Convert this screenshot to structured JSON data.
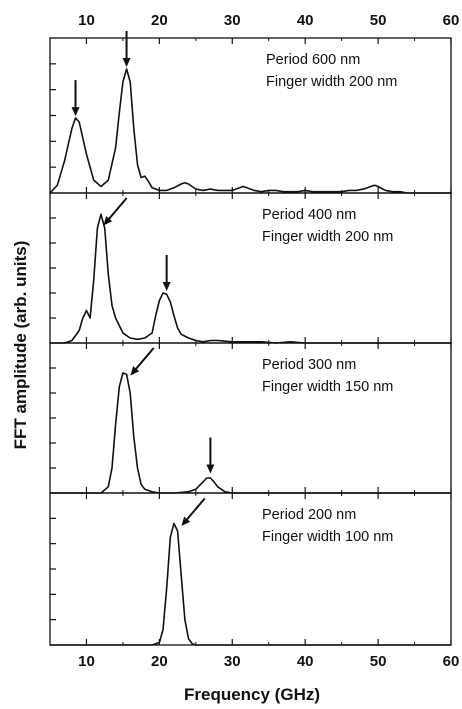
{
  "chart_data": {
    "type": "line",
    "xlabel": "Frequency (GHz)",
    "ylabel": "FFT amplitude (arb. units)",
    "xlim": [
      5,
      60
    ],
    "x_ticks": [
      "10",
      "20",
      "30",
      "40",
      "50",
      "60"
    ],
    "x_tick_values": [
      10,
      20,
      30,
      40,
      50,
      60
    ],
    "grid": false,
    "legend": "none",
    "line_color": "#111111",
    "panels": [
      {
        "annotation_lines": [
          "Period 600 nm",
          "Finger width 200 nm"
        ],
        "ylim": [
          0,
          1.2
        ],
        "y_ticks": [
          0.2,
          0.4,
          0.6,
          0.8,
          1.0
        ],
        "x": [
          5,
          6,
          7,
          8,
          8.5,
          9,
          10,
          11,
          12,
          13,
          14,
          14.5,
          15,
          15.5,
          16,
          16.5,
          17,
          17.5,
          18,
          18.5,
          19,
          20,
          21,
          22,
          23,
          23.5,
          24,
          25,
          26,
          27,
          28,
          29,
          30,
          31,
          31.5,
          32,
          33,
          34,
          35,
          36,
          37,
          38,
          39,
          40,
          41,
          42,
          43,
          44,
          45,
          46,
          47,
          48,
          49,
          49.5,
          50,
          51,
          52,
          53,
          54,
          55,
          56,
          57,
          58,
          59,
          60
        ],
        "y": [
          0.0,
          0.06,
          0.25,
          0.5,
          0.58,
          0.55,
          0.3,
          0.1,
          0.05,
          0.1,
          0.35,
          0.62,
          0.86,
          0.96,
          0.86,
          0.5,
          0.22,
          0.12,
          0.13,
          0.09,
          0.04,
          0.02,
          0.02,
          0.04,
          0.07,
          0.08,
          0.07,
          0.03,
          0.02,
          0.03,
          0.02,
          0.02,
          0.02,
          0.04,
          0.05,
          0.04,
          0.02,
          0.01,
          0.02,
          0.02,
          0.01,
          0.01,
          0.01,
          0.02,
          0.01,
          0.01,
          0.01,
          0.01,
          0.01,
          0.02,
          0.02,
          0.03,
          0.05,
          0.06,
          0.05,
          0.02,
          0.01,
          0.01,
          0.0,
          0.0,
          0.0,
          0.0,
          0.0,
          0.0,
          0.0
        ],
        "arrows": [
          {
            "x": 8.5,
            "y": 0.58,
            "direction": "down"
          },
          {
            "x": 15.5,
            "y": 0.96,
            "direction": "down"
          }
        ]
      },
      {
        "annotation_lines": [
          "Period 400 nm",
          "Finger width 200 nm"
        ],
        "ylim": [
          0,
          1.2
        ],
        "y_ticks": [
          0.2,
          0.4,
          0.6,
          0.8,
          1.0
        ],
        "x": [
          5,
          7,
          8,
          9,
          9.5,
          10,
          10.5,
          11,
          11.5,
          12,
          12.5,
          13,
          13.5,
          14,
          15,
          16,
          17,
          18,
          19,
          19.5,
          20,
          20.5,
          21,
          21.5,
          22,
          22.5,
          23,
          24,
          25,
          26,
          27,
          28,
          30,
          32,
          34,
          36,
          38,
          40,
          42,
          44,
          46,
          48,
          50,
          52,
          54,
          56,
          58,
          60
        ],
        "y": [
          0.0,
          0.0,
          0.02,
          0.1,
          0.2,
          0.26,
          0.2,
          0.5,
          0.92,
          1.03,
          0.92,
          0.55,
          0.3,
          0.2,
          0.08,
          0.04,
          0.03,
          0.04,
          0.08,
          0.22,
          0.34,
          0.4,
          0.39,
          0.33,
          0.22,
          0.12,
          0.07,
          0.04,
          0.02,
          0.01,
          0.02,
          0.02,
          0.01,
          0.01,
          0.01,
          0.0,
          0.01,
          0.0,
          0.0,
          0.0,
          0.0,
          0.0,
          0.0,
          0.0,
          0.0,
          0.0,
          0.0,
          0.0
        ],
        "arrows": [
          {
            "x": 12.5,
            "y": 0.92,
            "direction": "down-left"
          },
          {
            "x": 21,
            "y": 0.4,
            "direction": "down"
          }
        ]
      },
      {
        "annotation_lines": [
          "Period 300 nm",
          "Finger width 150 nm"
        ],
        "ylim": [
          0,
          1.2
        ],
        "y_ticks": [
          0.2,
          0.4,
          0.6,
          0.8,
          1.0
        ],
        "x": [
          5,
          10,
          12,
          13,
          13.5,
          14,
          14.5,
          15,
          15.5,
          16,
          16.5,
          17,
          17.5,
          18,
          19,
          20,
          22,
          24,
          25,
          26,
          26.5,
          27,
          27.5,
          28,
          29,
          30,
          35,
          40,
          45,
          50,
          55,
          60
        ],
        "y": [
          0.0,
          0.0,
          0.0,
          0.05,
          0.2,
          0.55,
          0.85,
          0.96,
          0.95,
          0.8,
          0.45,
          0.2,
          0.07,
          0.03,
          0.01,
          0.0,
          0.0,
          0.01,
          0.03,
          0.09,
          0.12,
          0.12,
          0.09,
          0.05,
          0.01,
          0.0,
          0.0,
          0.0,
          0.0,
          0.0,
          0.0,
          0.0
        ],
        "arrows": [
          {
            "x": 16.2,
            "y": 0.92,
            "direction": "down-left"
          },
          {
            "x": 27,
            "y": 0.14,
            "direction": "down"
          }
        ]
      },
      {
        "annotation_lines": [
          "Period 200 nm",
          "Finger width 100 nm"
        ],
        "ylim": [
          0,
          1.2
        ],
        "y_ticks": [
          0.2,
          0.4,
          0.6,
          0.8,
          1.0
        ],
        "x": [
          5,
          15,
          19,
          20,
          20.5,
          21,
          21.5,
          22,
          22.5,
          23,
          23.5,
          24,
          24.5,
          25,
          30,
          40,
          50,
          60
        ],
        "y": [
          0.0,
          0.0,
          0.0,
          0.02,
          0.12,
          0.45,
          0.85,
          0.96,
          0.9,
          0.55,
          0.2,
          0.05,
          0.01,
          0.0,
          0.0,
          0.0,
          0.0,
          0.0
        ],
        "arrows": [
          {
            "x": 23.2,
            "y": 0.92,
            "direction": "down-left"
          }
        ]
      }
    ]
  }
}
